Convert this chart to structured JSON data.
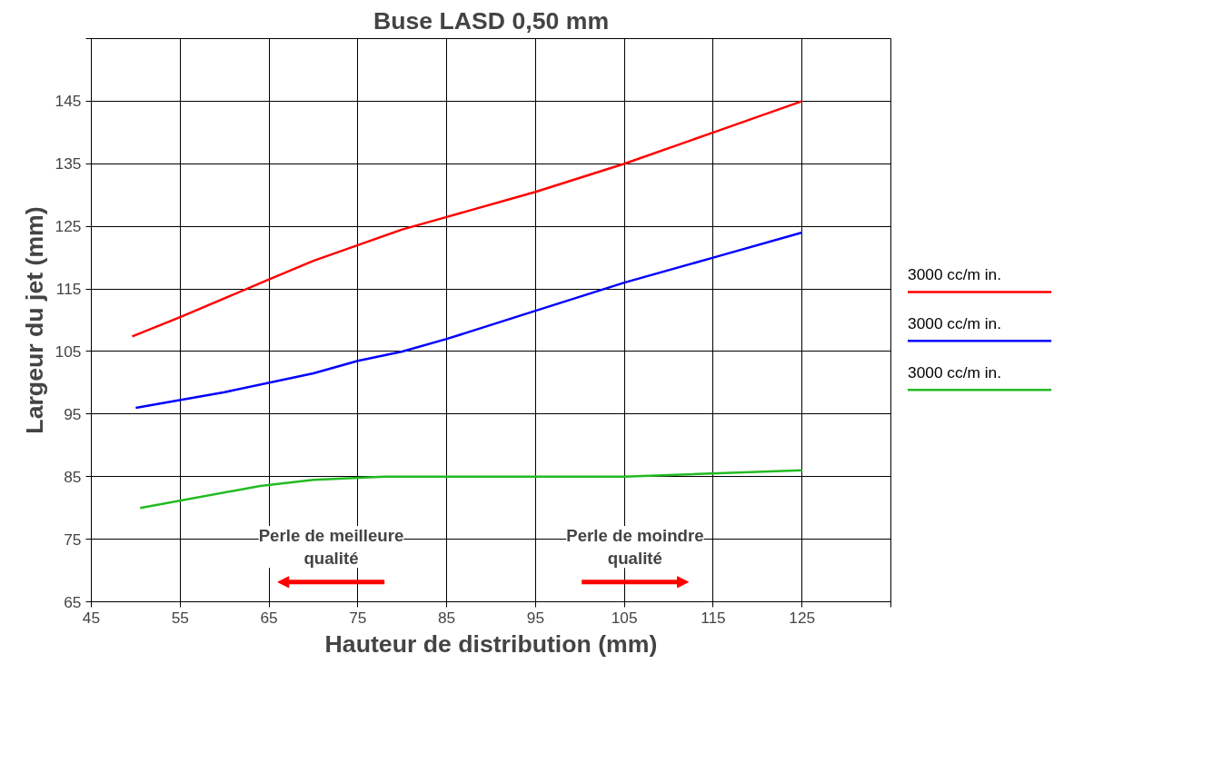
{
  "chart_data": {
    "type": "line",
    "title": "Buse LASD 0,50 mm",
    "xlabel": "Hauteur de distribution (mm)",
    "ylabel": "Largeur du jet (mm)",
    "series": [
      {
        "name": "3000 cc/m in.",
        "color": "#ff0000",
        "x": [
          49.6,
          55,
          65,
          70,
          75,
          80,
          85,
          95,
          105,
          115,
          125
        ],
        "values": [
          107.4,
          110.5,
          116.5,
          119.5,
          122,
          124.5,
          126.5,
          130.5,
          135,
          140,
          145
        ]
      },
      {
        "name": "3000 cc/m in.",
        "color": "#0000ff",
        "x": [
          50,
          60,
          70,
          75,
          80,
          85,
          95,
          105,
          115,
          125
        ],
        "values": [
          96,
          98.5,
          101.5,
          103.5,
          105,
          107,
          111.5,
          116,
          120,
          124
        ]
      },
      {
        "name": "3000 cc/m in.",
        "color": "#22bb22",
        "x": [
          50.5,
          64,
          70,
          78,
          105,
          125
        ],
        "values": [
          80,
          83.5,
          84.5,
          85,
          85,
          86
        ]
      }
    ],
    "xlim": [
      45,
      135
    ],
    "xticks": [
      45,
      55,
      65,
      75,
      85,
      95,
      105,
      115,
      125,
      {
        "value": 135,
        "label": null
      }
    ],
    "ylim": [
      65,
      155
    ],
    "yticks": [
      65,
      75,
      85,
      95,
      105,
      115,
      125,
      135,
      145,
      {
        "value": 155,
        "label": null
      }
    ],
    "grid": true,
    "legend": "right",
    "line_style": "solid",
    "annotations": [
      "Perle de meilleure\nqualité",
      "Perle de moindre\nqualité"
    ]
  }
}
